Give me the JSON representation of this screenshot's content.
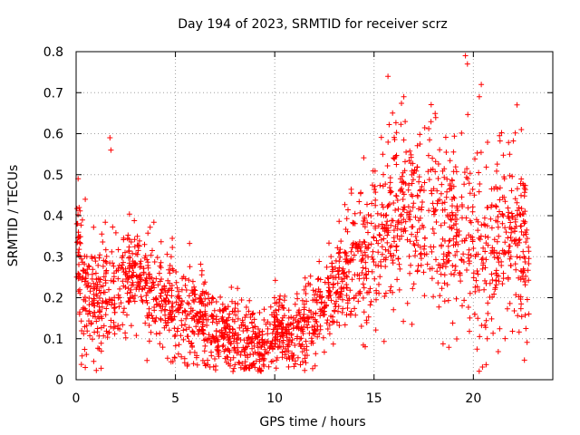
{
  "chart_data": {
    "type": "scatter",
    "title": "Day 194 of 2023, SRMTID for receiver scrz",
    "xlabel": "GPS time / hours",
    "ylabel": "SRMTID / TECUs",
    "xlim": [
      0,
      24
    ],
    "ylim": [
      0,
      0.8
    ],
    "x_ticks": [
      0,
      5,
      10,
      15,
      20
    ],
    "x_tick_labels": [
      "0",
      "5",
      "10",
      "15",
      "20"
    ],
    "y_ticks": [
      0,
      0.1,
      0.2,
      0.3,
      0.4,
      0.5,
      0.6,
      0.7,
      0.8
    ],
    "y_tick_labels": [
      "0",
      "0.1",
      "0.2",
      "0.3",
      "0.4",
      "0.5",
      "0.6",
      "0.7",
      "0.8"
    ],
    "grid": true,
    "marker": "+",
    "series": [
      {
        "name": "scrz",
        "color": "#ff0000",
        "mean_profile": {
          "x": [
            0.0,
            0.3,
            1.0,
            2.0,
            3.0,
            4.0,
            5.0,
            6.0,
            7.0,
            8.0,
            8.7,
            9.5,
            10.3,
            11.0,
            12.0,
            13.0,
            14.0,
            15.0,
            16.0,
            17.0,
            18.0,
            19.0,
            20.0,
            21.0,
            22.0,
            22.8
          ],
          "y": [
            0.34,
            0.24,
            0.19,
            0.22,
            0.26,
            0.21,
            0.17,
            0.15,
            0.13,
            0.1,
            0.07,
            0.08,
            0.13,
            0.1,
            0.15,
            0.22,
            0.28,
            0.33,
            0.4,
            0.44,
            0.38,
            0.36,
            0.33,
            0.31,
            0.38,
            0.3
          ]
        },
        "spread_profile": {
          "x": [
            0.0,
            2.0,
            5.0,
            8.0,
            10.0,
            12.0,
            14.0,
            15.5,
            17.0,
            19.0,
            21.0,
            22.8
          ],
          "y": [
            0.08,
            0.07,
            0.06,
            0.05,
            0.04,
            0.05,
            0.07,
            0.1,
            0.11,
            0.12,
            0.12,
            0.12
          ]
        },
        "notable_points": [
          {
            "x": 1.7,
            "y": 0.59
          },
          {
            "x": 1.75,
            "y": 0.56
          },
          {
            "x": 15.7,
            "y": 0.74
          },
          {
            "x": 16.5,
            "y": 0.69
          },
          {
            "x": 19.6,
            "y": 0.79
          },
          {
            "x": 19.7,
            "y": 0.77
          },
          {
            "x": 20.4,
            "y": 0.72
          },
          {
            "x": 20.3,
            "y": 0.69
          },
          {
            "x": 22.2,
            "y": 0.67
          },
          {
            "x": 20.7,
            "y": 0.1
          },
          {
            "x": 8.6,
            "y": 0.03
          },
          {
            "x": 0.1,
            "y": 0.49
          }
        ],
        "n_points": 2200
      }
    ]
  }
}
